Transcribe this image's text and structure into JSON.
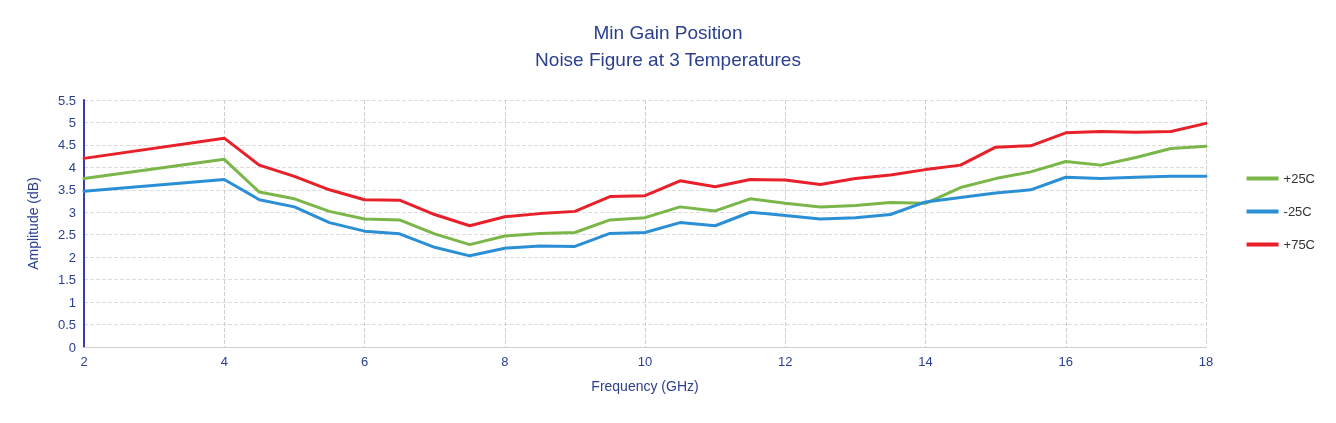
{
  "chart_data": {
    "type": "line",
    "title": "Min Gain Position",
    "subtitle": "Noise Figure at 3 Temperatures",
    "xlabel": "Frequency (GHz)",
    "ylabel": "Amplitude (dB)",
    "x": [
      2,
      4,
      4.5,
      5,
      5.5,
      6,
      6.5,
      7,
      7.5,
      8,
      8.5,
      9,
      9.5,
      10,
      10.5,
      11,
      11.5,
      12,
      12.5,
      13,
      13.5,
      14,
      14.5,
      15,
      15.5,
      16,
      16.5,
      17,
      17.5,
      18
    ],
    "series": [
      {
        "name": "+25C",
        "color": "#7ab648",
        "values": [
          3.75,
          4.18,
          3.45,
          3.3,
          3.02,
          2.85,
          2.83,
          2.52,
          2.28,
          2.47,
          2.53,
          2.55,
          2.83,
          2.88,
          3.12,
          3.03,
          3.3,
          3.2,
          3.12,
          3.15,
          3.22,
          3.2,
          3.55,
          3.75,
          3.9,
          4.13,
          4.05,
          4.22,
          4.42,
          4.47
        ]
      },
      {
        "name": "-25C",
        "color": "#2b8fd6",
        "values": [
          3.47,
          3.73,
          3.28,
          3.12,
          2.77,
          2.58,
          2.52,
          2.22,
          2.03,
          2.2,
          2.25,
          2.24,
          2.53,
          2.55,
          2.77,
          2.7,
          3.0,
          2.93,
          2.85,
          2.88,
          2.95,
          3.23,
          3.33,
          3.43,
          3.5,
          3.78,
          3.75,
          3.78,
          3.8,
          3.8
        ]
      },
      {
        "name": "+75C",
        "color": "#e8202a",
        "values": [
          4.2,
          4.65,
          4.05,
          3.8,
          3.5,
          3.28,
          3.27,
          2.95,
          2.7,
          2.9,
          2.97,
          3.02,
          3.35,
          3.37,
          3.7,
          3.57,
          3.73,
          3.72,
          3.62,
          3.75,
          3.83,
          3.95,
          4.05,
          4.45,
          4.48,
          4.77,
          4.8,
          4.78,
          4.8,
          4.98
        ]
      }
    ],
    "xlim": [
      2,
      18
    ],
    "xticks": [
      2,
      4,
      6,
      8,
      10,
      12,
      14,
      16,
      18
    ],
    "ylim": [
      0,
      5.5
    ],
    "yticks": [
      0,
      0.5,
      1,
      1.5,
      2,
      2.5,
      3,
      3.5,
      4,
      4.5,
      5,
      5.5
    ],
    "grid": true,
    "legend": "right",
    "marker": "none",
    "line_style": "solid"
  }
}
